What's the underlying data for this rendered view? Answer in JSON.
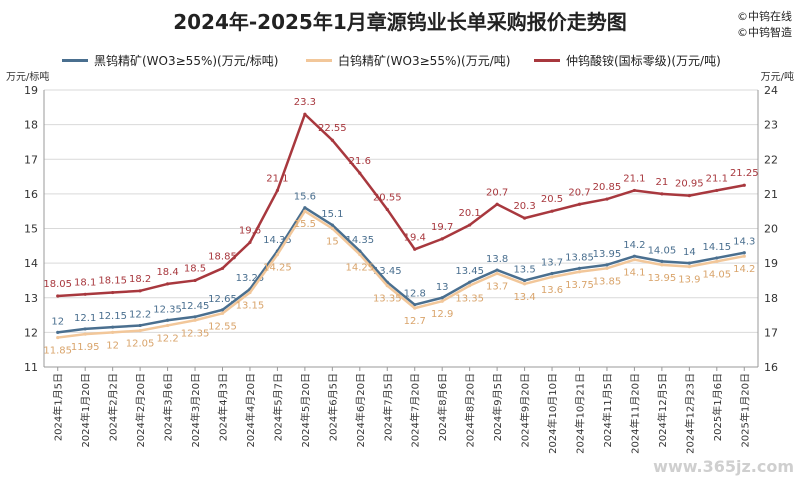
{
  "title": "2024年-2025年1月章源钨业长单采购报价走势图",
  "credits": [
    "©中钨在线",
    "©中钨智造"
  ],
  "watermark": "www.365jz.com",
  "colors": {
    "black": "#4a6f8f",
    "white": "#f2c79a",
    "apt": "#a8383e",
    "axis": "#333333",
    "grid": "#d9d9d9"
  },
  "chart_data": {
    "type": "line",
    "title": "2024年-2025年1月章源钨业长单采购报价走势图",
    "ylabel_left": "万元/标吨",
    "ylabel_right": "万元/吨",
    "ylim_left": [
      11,
      19
    ],
    "ylim_right": [
      16,
      24
    ],
    "left_ticks": [
      11,
      12,
      13,
      14,
      15,
      16,
      17,
      18,
      19
    ],
    "right_ticks": [
      16,
      17,
      18,
      19,
      20,
      21,
      22,
      23,
      24
    ],
    "grid": true,
    "legend_position": "top",
    "categories": [
      "2024年1月5日",
      "2024年1月20日",
      "2024年2月2日",
      "2024年2月20日",
      "2024年3月6日",
      "2024年3月20日",
      "2024年4月3日",
      "2024年4月20日",
      "2024年5月7日",
      "2024年5月20日",
      "2024年6月5日",
      "2024年6月20日",
      "2024年7月5日",
      "2024年7月20日",
      "2024年8月6日",
      "2024年8月20日",
      "2024年9月5日",
      "2024年9月20日",
      "2024年10月10日",
      "2024年10月21日",
      "2024年11月5日",
      "2024年11月20日",
      "2024年12月5日",
      "2024年12月23日",
      "2025年1月6日",
      "2025年1月20日"
    ],
    "series": [
      {
        "name": "黑钨精矿(WO3≥55%)(万元/标吨)",
        "axis": "left",
        "color": "#4a6f8f",
        "values": [
          12,
          12.1,
          12.15,
          12.2,
          12.35,
          12.45,
          12.65,
          13.25,
          14.35,
          15.6,
          15.1,
          14.35,
          13.45,
          12.8,
          13,
          13.45,
          13.8,
          13.5,
          13.7,
          13.85,
          13.95,
          14.2,
          14.05,
          14,
          14.15,
          14.3
        ]
      },
      {
        "name": "白钨精矿(WO3≥55%)(万元/吨)",
        "axis": "left",
        "color": "#f2c79a",
        "values": [
          11.85,
          11.95,
          12,
          12.05,
          12.2,
          12.35,
          12.55,
          13.15,
          14.25,
          15.5,
          15,
          14.25,
          13.35,
          12.7,
          12.9,
          13.35,
          13.7,
          13.4,
          13.6,
          13.75,
          13.85,
          14.1,
          13.95,
          13.9,
          14.05,
          14.2
        ]
      },
      {
        "name": "仲钨酸铵(国标零级)(万元/吨)",
        "axis": "right",
        "color": "#a8383e",
        "values": [
          18.05,
          18.1,
          18.15,
          18.2,
          18.4,
          18.5,
          18.85,
          19.6,
          21.1,
          23.3,
          22.55,
          21.6,
          20.55,
          19.4,
          19.7,
          20.1,
          20.7,
          20.3,
          20.5,
          20.7,
          20.85,
          21.1,
          21,
          20.95,
          21.1,
          21.25
        ]
      }
    ]
  }
}
